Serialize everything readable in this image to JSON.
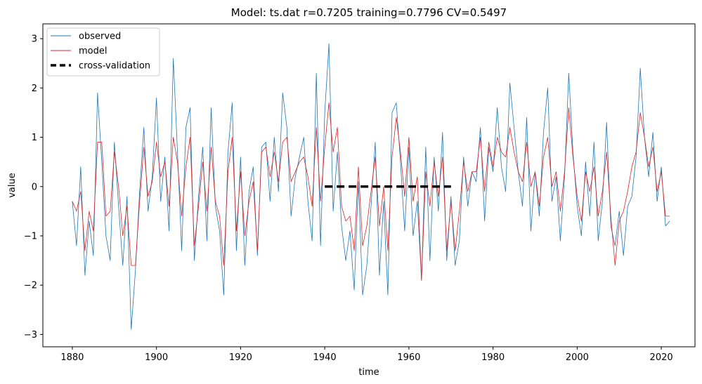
{
  "chart_data": {
    "type": "line",
    "title": "Model: ts.dat  r=0.7205  training=0.7796  CV=0.5497",
    "xlabel": "time",
    "ylabel": "value",
    "xlim": [
      1873,
      2028
    ],
    "ylim": [
      -3.25,
      3.3
    ],
    "x_ticks": [
      1880,
      1900,
      1920,
      1940,
      1960,
      1980,
      2000,
      2020
    ],
    "x_tick_labels": [
      "1880",
      "1900",
      "1920",
      "1940",
      "1960",
      "1980",
      "2000",
      "2020"
    ],
    "y_ticks": [
      -3,
      -2,
      -1,
      0,
      1,
      2,
      3
    ],
    "y_tick_labels": [
      "−3",
      "−2",
      "−1",
      "0",
      "1",
      "2",
      "3"
    ],
    "legend_position": "top-left",
    "series": [
      {
        "name": "observed",
        "color": "#1f77b4",
        "style": "solid",
        "x": [
          1880,
          1881,
          1882,
          1883,
          1884,
          1885,
          1886,
          1887,
          1888,
          1889,
          1890,
          1891,
          1892,
          1893,
          1894,
          1895,
          1896,
          1897,
          1898,
          1899,
          1900,
          1901,
          1902,
          1903,
          1904,
          1905,
          1906,
          1907,
          1908,
          1909,
          1910,
          1911,
          1912,
          1913,
          1914,
          1915,
          1916,
          1917,
          1918,
          1919,
          1920,
          1921,
          1922,
          1923,
          1924,
          1925,
          1926,
          1927,
          1928,
          1929,
          1930,
          1931,
          1932,
          1933,
          1934,
          1935,
          1936,
          1937,
          1938,
          1939,
          1940,
          1941,
          1942,
          1943,
          1944,
          1945,
          1946,
          1947,
          1948,
          1949,
          1950,
          1951,
          1952,
          1953,
          1954,
          1955,
          1956,
          1957,
          1958,
          1959,
          1960,
          1961,
          1962,
          1963,
          1964,
          1965,
          1966,
          1967,
          1968,
          1969,
          1970,
          1971,
          1972,
          1973,
          1974,
          1975,
          1976,
          1977,
          1978,
          1979,
          1980,
          1981,
          1982,
          1983,
          1984,
          1985,
          1986,
          1987,
          1988,
          1989,
          1990,
          1991,
          1992,
          1993,
          1994,
          1995,
          1996,
          1997,
          1998,
          1999,
          2000,
          2001,
          2002,
          2003,
          2004,
          2005,
          2006,
          2007,
          2008,
          2009,
          2010,
          2011,
          2012,
          2013,
          2014,
          2015,
          2016,
          2017,
          2018,
          2019,
          2020,
          2021,
          2022
        ],
        "values": [
          -0.3,
          -1.2,
          0.4,
          -1.8,
          -0.7,
          -1.4,
          1.9,
          0.5,
          -1.0,
          -1.5,
          0.9,
          -0.4,
          -1.6,
          -0.2,
          -2.9,
          -1.7,
          -0.1,
          1.2,
          -0.5,
          0.2,
          1.8,
          -0.3,
          0.6,
          -0.9,
          2.6,
          0.7,
          -1.3,
          1.2,
          1.6,
          -1.5,
          -0.2,
          0.8,
          -1.1,
          1.6,
          -0.4,
          -0.9,
          -2.2,
          0.7,
          1.7,
          -1.3,
          0.6,
          -1.6,
          -0.1,
          0.4,
          -1.4,
          0.8,
          0.9,
          -0.3,
          1.0,
          -0.1,
          1.9,
          1.2,
          -0.6,
          0.2,
          0.6,
          1.0,
          -0.3,
          -1.1,
          2.3,
          -1.2,
          1.5,
          2.9,
          -0.5,
          0.7,
          -0.8,
          -1.5,
          -0.9,
          -2.1,
          0.1,
          -2.2,
          -1.6,
          -0.4,
          0.9,
          -1.8,
          -0.3,
          -2.2,
          1.5,
          1.7,
          0.5,
          -0.9,
          0.8,
          -1.0,
          -0.3,
          -1.9,
          0.8,
          -1.5,
          0.6,
          -0.5,
          1.1,
          -1.5,
          -0.2,
          -1.6,
          -1.1,
          0.6,
          -0.4,
          0.3,
          0.1,
          1.2,
          -0.7,
          0.8,
          0.3,
          1.6,
          0.4,
          -0.1,
          2.1,
          1.2,
          0.3,
          -0.4,
          1.4,
          -0.9,
          0.3,
          -0.6,
          1.1,
          2.0,
          -0.3,
          0.2,
          -1.1,
          0.2,
          2.3,
          0.7,
          -0.4,
          -1.0,
          0.5,
          -0.6,
          0.9,
          -1.1,
          -0.3,
          1.3,
          -0.8,
          -1.2,
          -0.5,
          -1.4,
          -0.4,
          -0.2,
          0.6,
          2.4,
          1.0,
          0.2,
          1.1,
          -0.3,
          0.4,
          -0.8,
          -0.7
        ]
      },
      {
        "name": "model",
        "color": "#d62728",
        "style": "solid",
        "x": [
          1880,
          1881,
          1882,
          1883,
          1884,
          1885,
          1886,
          1887,
          1888,
          1889,
          1890,
          1891,
          1892,
          1893,
          1894,
          1895,
          1896,
          1897,
          1898,
          1899,
          1900,
          1901,
          1902,
          1903,
          1904,
          1905,
          1906,
          1907,
          1908,
          1909,
          1910,
          1911,
          1912,
          1913,
          1914,
          1915,
          1916,
          1917,
          1918,
          1919,
          1920,
          1921,
          1922,
          1923,
          1924,
          1925,
          1926,
          1927,
          1928,
          1929,
          1930,
          1931,
          1932,
          1933,
          1934,
          1935,
          1936,
          1937,
          1938,
          1939,
          1940,
          1941,
          1942,
          1943,
          1944,
          1945,
          1946,
          1947,
          1948,
          1949,
          1950,
          1951,
          1952,
          1953,
          1954,
          1955,
          1956,
          1957,
          1958,
          1959,
          1960,
          1961,
          1962,
          1963,
          1964,
          1965,
          1966,
          1967,
          1968,
          1969,
          1970,
          1971,
          1972,
          1973,
          1974,
          1975,
          1976,
          1977,
          1978,
          1979,
          1980,
          1981,
          1982,
          1983,
          1984,
          1985,
          1986,
          1987,
          1988,
          1989,
          1990,
          1991,
          1992,
          1993,
          1994,
          1995,
          1996,
          1997,
          1998,
          1999,
          2000,
          2001,
          2002,
          2003,
          2004,
          2005,
          2006,
          2007,
          2008,
          2009,
          2010,
          2011,
          2012,
          2013,
          2014,
          2015,
          2016,
          2017,
          2018,
          2019,
          2020,
          2021,
          2022
        ],
        "values": [
          -0.3,
          -0.5,
          -0.1,
          -1.3,
          -0.5,
          -0.9,
          0.9,
          0.9,
          -0.6,
          -0.5,
          0.7,
          0.0,
          -1.0,
          -0.4,
          -1.6,
          -1.6,
          -0.3,
          0.8,
          -0.2,
          0.1,
          0.9,
          0.2,
          0.5,
          -0.4,
          1.0,
          0.5,
          -0.6,
          0.4,
          1.0,
          -1.2,
          -0.4,
          0.5,
          -0.5,
          0.8,
          -0.3,
          -0.6,
          -1.6,
          0.3,
          1.0,
          -0.9,
          0.3,
          -1.0,
          -0.3,
          0.1,
          -1.3,
          0.7,
          0.8,
          0.2,
          0.7,
          0.1,
          0.9,
          1.0,
          0.1,
          0.3,
          0.5,
          0.6,
          0.2,
          -0.4,
          1.2,
          -0.3,
          0.8,
          1.7,
          0.7,
          1.2,
          -0.4,
          -0.7,
          -0.6,
          -1.3,
          0.4,
          -1.2,
          -0.8,
          -0.1,
          0.6,
          -0.8,
          0.0,
          -1.3,
          0.6,
          1.4,
          0.7,
          -0.2,
          1.0,
          -0.3,
          0.2,
          -1.9,
          0.3,
          -0.4,
          0.5,
          -0.2,
          0.6,
          -1.3,
          -0.3,
          -1.3,
          -0.5,
          0.5,
          -0.1,
          0.3,
          0.3,
          1.0,
          -0.1,
          0.9,
          0.4,
          1.0,
          0.7,
          0.6,
          1.2,
          0.7,
          0.3,
          0.1,
          0.9,
          0.0,
          0.3,
          -0.4,
          0.6,
          1.0,
          0.0,
          0.3,
          -0.5,
          0.3,
          1.6,
          0.6,
          -0.2,
          -0.7,
          0.3,
          -0.1,
          0.4,
          -0.6,
          -0.1,
          0.7,
          -0.6,
          -1.6,
          -0.7,
          -0.5,
          -0.1,
          0.4,
          0.7,
          1.5,
          1.0,
          0.4,
          0.8,
          -0.1,
          0.3,
          -0.6,
          -0.6
        ]
      },
      {
        "name": "cross-validation",
        "color": "#000000",
        "style": "dashed",
        "x": [
          1940,
          1970
        ],
        "values": [
          0.0,
          0.0
        ]
      }
    ]
  }
}
